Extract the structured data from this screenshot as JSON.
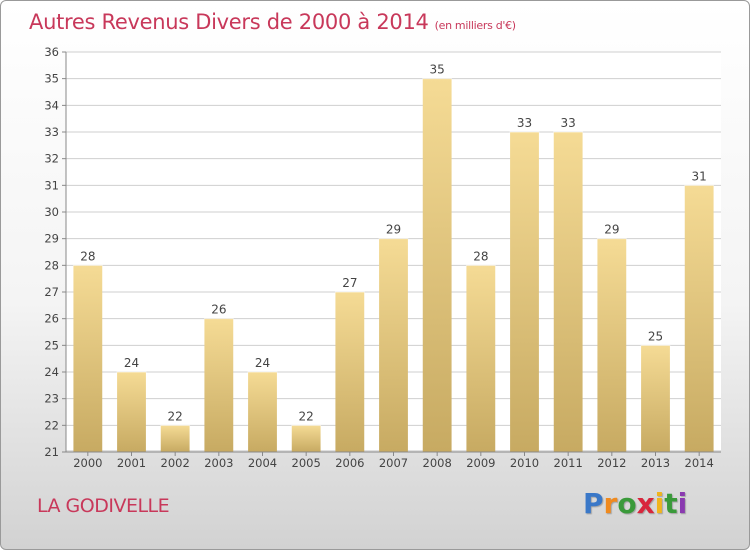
{
  "title": "Autres Revenus Divers de 2000 à 2014",
  "unit": "(en milliers d'€)",
  "place": "LA GODIVELLE",
  "logo": {
    "text": "Proxiti",
    "letter_colors": [
      "#3a78c8",
      "#f08a1e",
      "#3a9a3a",
      "#d8263c",
      "#f0b41e",
      "#3a9a3a",
      "#8a3ab0"
    ]
  },
  "chart_data": {
    "type": "bar",
    "title": "Autres Revenus Divers de 2000 à 2014",
    "xlabel": "",
    "ylabel": "",
    "categories": [
      "2000",
      "2001",
      "2002",
      "2003",
      "2004",
      "2005",
      "2006",
      "2007",
      "2008",
      "2009",
      "2010",
      "2011",
      "2012",
      "2013",
      "2014"
    ],
    "values": [
      28,
      24,
      22,
      26,
      24,
      22,
      27,
      29,
      35,
      28,
      33,
      33,
      29,
      25,
      31
    ],
    "ylim": [
      21,
      36
    ],
    "yticks": [
      21,
      22,
      23,
      24,
      25,
      26,
      27,
      28,
      29,
      30,
      31,
      32,
      33,
      34,
      35,
      36
    ],
    "grid": true,
    "data_labels": true,
    "colors": {
      "bar_top": "#f5db95",
      "bar_bottom": "#c7aa62",
      "grid": "#cfcfcf",
      "axis": "#888888",
      "text": "#444444"
    }
  }
}
